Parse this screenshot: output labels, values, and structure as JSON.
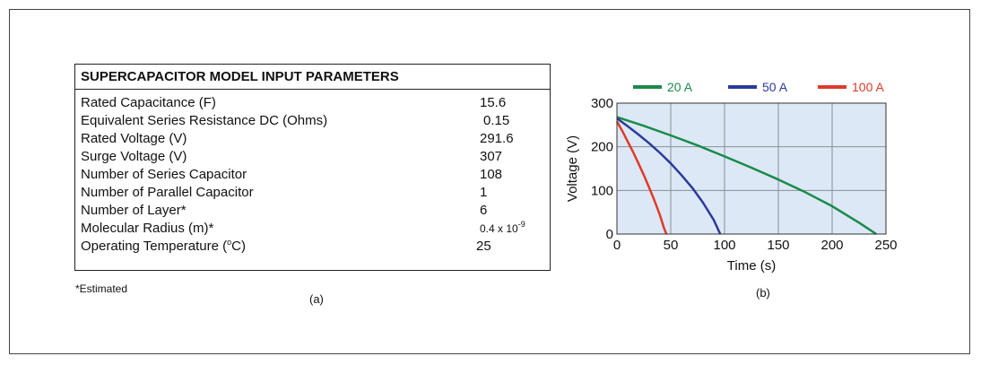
{
  "table": {
    "title": "SUPERCAPACITOR MODEL INPUT PARAMETERS",
    "rows": [
      {
        "label": "Rated Capacitance (F)",
        "value": "15.6"
      },
      {
        "label": "Equivalent Series Resistance DC (Ohms)",
        "value": "0.15"
      },
      {
        "label": "Rated Voltage (V)",
        "value": "291.6"
      },
      {
        "label": "Surge  Voltage (V)",
        "value": "307"
      },
      {
        "label": "Number of Series Capacitor",
        "value": "108"
      },
      {
        "label": "Number of Parallel Capacitor",
        "value": "1"
      },
      {
        "label": "Number of Layer*",
        "value": "6"
      },
      {
        "label": "Molecular Radius (m)*",
        "value": "0.4 x 10",
        "value_sup": "-9"
      },
      {
        "label": "Operating Temperature (",
        "label_sup": "o",
        "label_tail": "C)",
        "value": "25"
      }
    ],
    "note": "*Estimated"
  },
  "captions": {
    "a": "(a)",
    "b": "(b)"
  },
  "chart_data": {
    "type": "line",
    "title": "",
    "xlabel": "Time (s)",
    "ylabel": "Voltage (V)",
    "xlim": [
      0,
      250
    ],
    "ylim": [
      0,
      300
    ],
    "xticks": [
      0,
      50,
      100,
      150,
      200,
      250
    ],
    "yticks": [
      0,
      100,
      200,
      300
    ],
    "grid": true,
    "legend_position": "top",
    "background": "#dce8f5",
    "series": [
      {
        "name": "20 A",
        "color": "#1a8a4a",
        "x": [
          0,
          25,
          50,
          75,
          100,
          125,
          150,
          175,
          200,
          225,
          241
        ],
        "y": [
          268,
          248,
          226,
          203,
          178,
          152,
          125,
          96,
          64,
          26,
          0
        ]
      },
      {
        "name": "50 A",
        "color": "#2b3a9a",
        "x": [
          0,
          10,
          20,
          30,
          40,
          50,
          60,
          70,
          80,
          90,
          96
        ],
        "y": [
          265,
          247,
          228,
          208,
          186,
          162,
          135,
          106,
          72,
          32,
          0
        ]
      },
      {
        "name": "100 A",
        "color": "#e03a2a",
        "x": [
          0,
          5,
          10,
          15,
          20,
          25,
          30,
          35,
          40,
          44,
          46
        ],
        "y": [
          258,
          236,
          212,
          188,
          162,
          135,
          106,
          76,
          43,
          12,
          0
        ]
      }
    ]
  }
}
